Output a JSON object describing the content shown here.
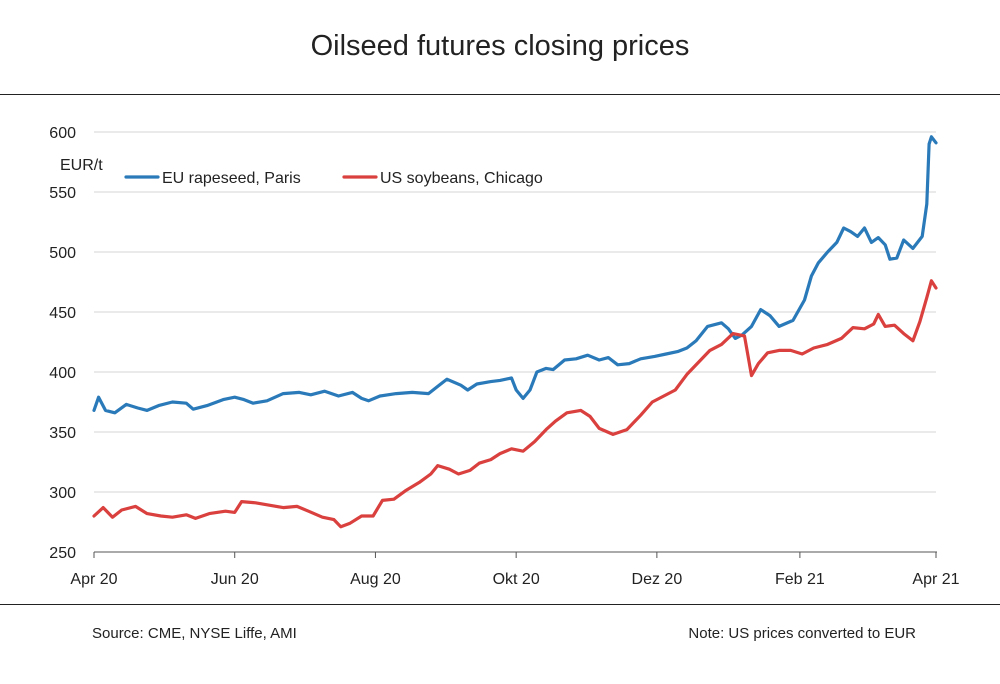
{
  "title": "Oilseed futures closing prices",
  "footer": {
    "source": "Source: CME, NYSE Liffe, AMI",
    "note": "Note: US prices converted to EUR"
  },
  "chart_data": {
    "type": "line",
    "title": "Oilseed futures closing prices",
    "ylabel": "EUR/t",
    "xlabel": "",
    "ylim": [
      250,
      600
    ],
    "yticks": [
      600,
      550,
      500,
      450,
      400,
      350,
      300,
      250
    ],
    "xlim": [
      "2020-04-01",
      "2021-04-01"
    ],
    "xticks": [
      {
        "date": "2020-04-01",
        "label": "Apr 20"
      },
      {
        "date": "2020-06-01",
        "label": "Jun 20"
      },
      {
        "date": "2020-08-01",
        "label": "Aug 20"
      },
      {
        "date": "2020-10-01",
        "label": "Okt 20"
      },
      {
        "date": "2020-12-01",
        "label": "Dez 20"
      },
      {
        "date": "2021-02-01",
        "label": "Feb 21"
      },
      {
        "date": "2021-04-01",
        "label": "Apr 21"
      }
    ],
    "grid": true,
    "legend_position": "top-left",
    "series": [
      {
        "name": "EU rapeseed, Paris",
        "color": "#2a7ab9",
        "points": [
          [
            "2020-04-01",
            368
          ],
          [
            "2020-04-03",
            379
          ],
          [
            "2020-04-06",
            368
          ],
          [
            "2020-04-10",
            366
          ],
          [
            "2020-04-15",
            373
          ],
          [
            "2020-04-20",
            370
          ],
          [
            "2020-04-24",
            368
          ],
          [
            "2020-04-29",
            372
          ],
          [
            "2020-05-05",
            375
          ],
          [
            "2020-05-11",
            374
          ],
          [
            "2020-05-14",
            369
          ],
          [
            "2020-05-20",
            372
          ],
          [
            "2020-05-27",
            377
          ],
          [
            "2020-06-01",
            379
          ],
          [
            "2020-06-05",
            377
          ],
          [
            "2020-06-09",
            374
          ],
          [
            "2020-06-15",
            376
          ],
          [
            "2020-06-22",
            382
          ],
          [
            "2020-06-29",
            383
          ],
          [
            "2020-07-04",
            381
          ],
          [
            "2020-07-10",
            384
          ],
          [
            "2020-07-16",
            380
          ],
          [
            "2020-07-22",
            383
          ],
          [
            "2020-07-26",
            378
          ],
          [
            "2020-07-29",
            376
          ],
          [
            "2020-08-03",
            380
          ],
          [
            "2020-08-10",
            382
          ],
          [
            "2020-08-17",
            383
          ],
          [
            "2020-08-24",
            382
          ],
          [
            "2020-08-28",
            388
          ],
          [
            "2020-09-01",
            394
          ],
          [
            "2020-09-07",
            389
          ],
          [
            "2020-09-10",
            385
          ],
          [
            "2020-09-14",
            390
          ],
          [
            "2020-09-20",
            392
          ],
          [
            "2020-09-24",
            393
          ],
          [
            "2020-09-29",
            395
          ],
          [
            "2020-10-01",
            385
          ],
          [
            "2020-10-04",
            378
          ],
          [
            "2020-10-07",
            385
          ],
          [
            "2020-10-10",
            400
          ],
          [
            "2020-10-14",
            403
          ],
          [
            "2020-10-17",
            402
          ],
          [
            "2020-10-22",
            410
          ],
          [
            "2020-10-27",
            411
          ],
          [
            "2020-11-01",
            414
          ],
          [
            "2020-11-06",
            410
          ],
          [
            "2020-11-10",
            412
          ],
          [
            "2020-11-14",
            406
          ],
          [
            "2020-11-19",
            407
          ],
          [
            "2020-11-24",
            411
          ],
          [
            "2020-11-30",
            413
          ],
          [
            "2020-12-05",
            415
          ],
          [
            "2020-12-10",
            417
          ],
          [
            "2020-12-14",
            420
          ],
          [
            "2020-12-18",
            426
          ],
          [
            "2020-12-23",
            438
          ],
          [
            "2020-12-29",
            441
          ],
          [
            "2021-01-01",
            436
          ],
          [
            "2021-01-04",
            428
          ],
          [
            "2021-01-07",
            431
          ],
          [
            "2021-01-11",
            438
          ],
          [
            "2021-01-15",
            452
          ],
          [
            "2021-01-19",
            447
          ],
          [
            "2021-01-23",
            438
          ],
          [
            "2021-01-29",
            443
          ],
          [
            "2021-02-03",
            460
          ],
          [
            "2021-02-06",
            480
          ],
          [
            "2021-02-09",
            491
          ],
          [
            "2021-02-13",
            500
          ],
          [
            "2021-02-17",
            508
          ],
          [
            "2021-02-20",
            520
          ],
          [
            "2021-02-23",
            517
          ],
          [
            "2021-02-26",
            513
          ],
          [
            "2021-03-01",
            520
          ],
          [
            "2021-03-04",
            508
          ],
          [
            "2021-03-07",
            512
          ],
          [
            "2021-03-10",
            506
          ],
          [
            "2021-03-12",
            494
          ],
          [
            "2021-03-15",
            495
          ],
          [
            "2021-03-18",
            510
          ],
          [
            "2021-03-22",
            503
          ],
          [
            "2021-03-26",
            513
          ],
          [
            "2021-03-28",
            540
          ],
          [
            "2021-03-29",
            590
          ],
          [
            "2021-03-30",
            596
          ],
          [
            "2021-04-01",
            591
          ]
        ]
      },
      {
        "name": "US soybeans, Chicago",
        "color": "#d9403e",
        "points": [
          [
            "2020-04-01",
            280
          ],
          [
            "2020-04-05",
            287
          ],
          [
            "2020-04-09",
            279
          ],
          [
            "2020-04-13",
            285
          ],
          [
            "2020-04-19",
            288
          ],
          [
            "2020-04-24",
            282
          ],
          [
            "2020-04-30",
            280
          ],
          [
            "2020-05-05",
            279
          ],
          [
            "2020-05-11",
            281
          ],
          [
            "2020-05-15",
            278
          ],
          [
            "2020-05-21",
            282
          ],
          [
            "2020-05-28",
            284
          ],
          [
            "2020-06-01",
            283
          ],
          [
            "2020-06-04",
            292
          ],
          [
            "2020-06-10",
            291
          ],
          [
            "2020-06-16",
            289
          ],
          [
            "2020-06-22",
            287
          ],
          [
            "2020-06-28",
            288
          ],
          [
            "2020-07-03",
            284
          ],
          [
            "2020-07-09",
            279
          ],
          [
            "2020-07-14",
            277
          ],
          [
            "2020-07-17",
            271
          ],
          [
            "2020-07-21",
            274
          ],
          [
            "2020-07-26",
            280
          ],
          [
            "2020-07-31",
            280
          ],
          [
            "2020-08-04",
            293
          ],
          [
            "2020-08-09",
            294
          ],
          [
            "2020-08-14",
            301
          ],
          [
            "2020-08-20",
            308
          ],
          [
            "2020-08-25",
            315
          ],
          [
            "2020-08-28",
            322
          ],
          [
            "2020-09-02",
            319
          ],
          [
            "2020-09-06",
            315
          ],
          [
            "2020-09-11",
            318
          ],
          [
            "2020-09-15",
            324
          ],
          [
            "2020-09-20",
            327
          ],
          [
            "2020-09-24",
            332
          ],
          [
            "2020-09-29",
            336
          ],
          [
            "2020-10-04",
            334
          ],
          [
            "2020-10-09",
            342
          ],
          [
            "2020-10-14",
            352
          ],
          [
            "2020-10-18",
            359
          ],
          [
            "2020-10-23",
            366
          ],
          [
            "2020-10-29",
            368
          ],
          [
            "2020-11-02",
            363
          ],
          [
            "2020-11-06",
            353
          ],
          [
            "2020-11-12",
            348
          ],
          [
            "2020-11-18",
            352
          ],
          [
            "2020-11-24",
            364
          ],
          [
            "2020-11-29",
            375
          ],
          [
            "2020-12-04",
            380
          ],
          [
            "2020-12-09",
            385
          ],
          [
            "2020-12-14",
            398
          ],
          [
            "2020-12-19",
            408
          ],
          [
            "2020-12-24",
            418
          ],
          [
            "2020-12-29",
            423
          ],
          [
            "2021-01-03",
            432
          ],
          [
            "2021-01-08",
            430
          ],
          [
            "2021-01-11",
            397
          ],
          [
            "2021-01-14",
            407
          ],
          [
            "2021-01-18",
            416
          ],
          [
            "2021-01-23",
            418
          ],
          [
            "2021-01-28",
            418
          ],
          [
            "2021-02-02",
            415
          ],
          [
            "2021-02-07",
            420
          ],
          [
            "2021-02-13",
            423
          ],
          [
            "2021-02-19",
            428
          ],
          [
            "2021-02-24",
            437
          ],
          [
            "2021-03-01",
            436
          ],
          [
            "2021-03-05",
            440
          ],
          [
            "2021-03-07",
            448
          ],
          [
            "2021-03-10",
            438
          ],
          [
            "2021-03-14",
            439
          ],
          [
            "2021-03-18",
            432
          ],
          [
            "2021-03-22",
            426
          ],
          [
            "2021-03-25",
            442
          ],
          [
            "2021-03-28",
            462
          ],
          [
            "2021-03-30",
            476
          ],
          [
            "2021-04-01",
            470
          ]
        ]
      }
    ]
  }
}
